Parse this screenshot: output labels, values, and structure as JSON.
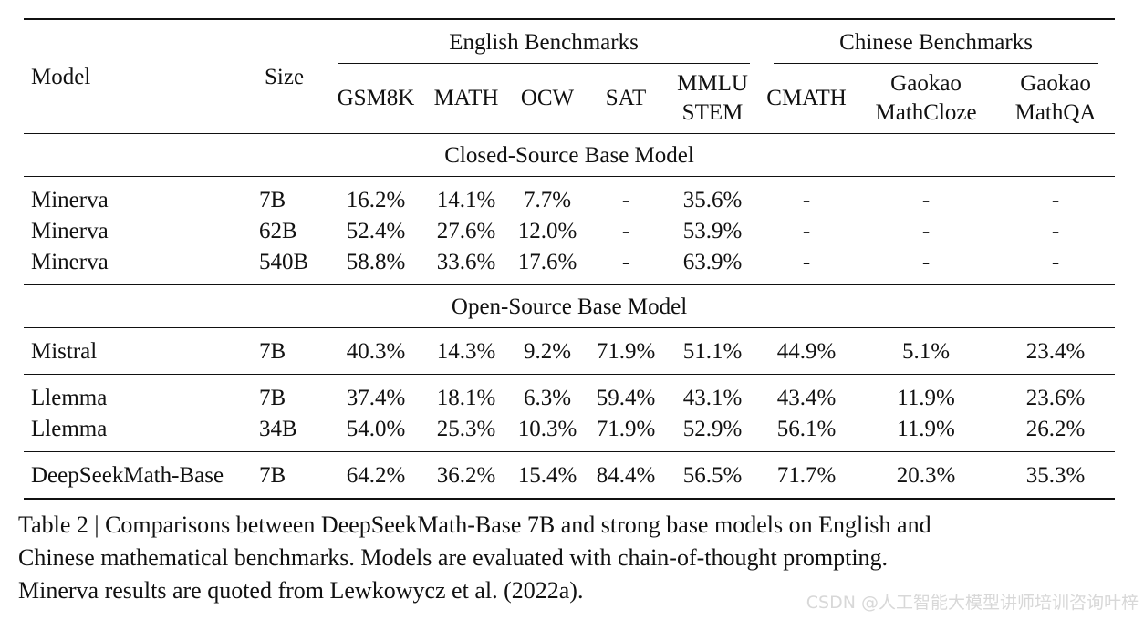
{
  "table": {
    "model_header": "Model",
    "size_header": "Size",
    "groups": {
      "english": "English Benchmarks",
      "chinese": "Chinese Benchmarks"
    },
    "columns": {
      "gsm8k": "GSM8K",
      "math": "MATH",
      "ocw": "OCW",
      "sat": "SAT",
      "mmlu_stem_1": "MMLU",
      "mmlu_stem_2": "STEM",
      "cmath": "CMATH",
      "gaokao_mathcloze_1": "Gaokao",
      "gaokao_mathcloze_2": "MathCloze",
      "gaokao_mathqa_1": "Gaokao",
      "gaokao_mathqa_2": "MathQA"
    },
    "sections": {
      "closed": "Closed-Source Base Model",
      "open": "Open-Source Base Model"
    },
    "rows": [
      {
        "model": "Minerva",
        "size": "7B",
        "gsm8k": "16.2%",
        "math": "14.1%",
        "ocw": "7.7%",
        "sat": "-",
        "mmlu": "35.6%",
        "cmath": "-",
        "cloze": "-",
        "qa": "-"
      },
      {
        "model": "Minerva",
        "size": "62B",
        "gsm8k": "52.4%",
        "math": "27.6%",
        "ocw": "12.0%",
        "sat": "-",
        "mmlu": "53.9%",
        "cmath": "-",
        "cloze": "-",
        "qa": "-"
      },
      {
        "model": "Minerva",
        "size": "540B",
        "gsm8k": "58.8%",
        "math": "33.6%",
        "ocw": "17.6%",
        "sat": "-",
        "mmlu": "63.9%",
        "cmath": "-",
        "cloze": "-",
        "qa": "-"
      },
      {
        "model": "Mistral",
        "size": "7B",
        "gsm8k": "40.3%",
        "math": "14.3%",
        "ocw": "9.2%",
        "sat": "71.9%",
        "mmlu": "51.1%",
        "cmath": "44.9%",
        "cloze": "5.1%",
        "qa": "23.4%"
      },
      {
        "model": "Llemma",
        "size": "7B",
        "gsm8k": "37.4%",
        "math": "18.1%",
        "ocw": "6.3%",
        "sat": "59.4%",
        "mmlu": "43.1%",
        "cmath": "43.4%",
        "cloze": "11.9%",
        "qa": "23.6%"
      },
      {
        "model": "Llemma",
        "size": "34B",
        "gsm8k": "54.0%",
        "math": "25.3%",
        "ocw": "10.3%",
        "sat": "71.9%",
        "mmlu": "52.9%",
        "cmath": "56.1%",
        "cloze": "11.9%",
        "qa": "26.2%"
      },
      {
        "model": "DeepSeekMath-Base",
        "size": "7B",
        "gsm8k": "64.2%",
        "math": "36.2%",
        "ocw": "15.4%",
        "sat": "84.4%",
        "mmlu": "56.5%",
        "cmath": "71.7%",
        "cloze": "20.3%",
        "qa": "35.3%"
      }
    ]
  },
  "caption": {
    "line1": "Table 2 | Comparisons between DeepSeekMath-Base 7B and strong base models on English and",
    "line2": "Chinese mathematical benchmarks. Models are evaluated with chain-of-thought prompting.",
    "line3": "Minerva results are quoted from Lewkowycz et al. (2022a)."
  },
  "watermark": "CSDN @人工智能大模型讲师培训咨询叶梓"
}
